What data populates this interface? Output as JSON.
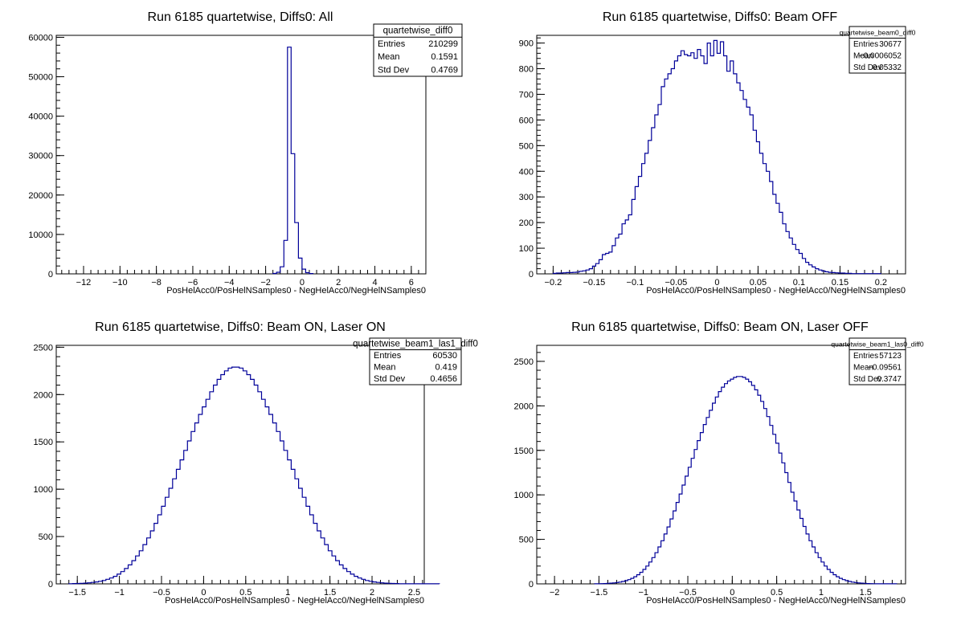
{
  "colors": {
    "line": "#000099",
    "axis": "#000000",
    "background": "#ffffff"
  },
  "chart_data": [
    {
      "type": "histogram",
      "title": "Run 6185 quartetwise, Diffs0: All",
      "xlabel": "PosHelAcc0/PosHelNSamples0 - NegHelAcc0/NegHelNSamples0",
      "ylabel": "",
      "xlim": [
        -13.5,
        6.8
      ],
      "ylim": [
        0,
        60500
      ],
      "xticks": [
        -12,
        -10,
        -8,
        -6,
        -4,
        -2,
        0,
        2,
        4,
        6
      ],
      "xtick_labels": [
        "−12",
        "−10",
        "−8",
        "−6",
        "−4",
        "−2",
        "0",
        "2",
        "4",
        "6"
      ],
      "yticks": [
        0,
        10000,
        20000,
        30000,
        40000,
        50000,
        60000
      ],
      "ytick_labels": [
        "0",
        "10000",
        "20000",
        "30000",
        "40000",
        "50000",
        "60000"
      ],
      "stats": {
        "name": "quartetwise_diff0",
        "rows": [
          {
            "label": "Entries",
            "value": "210299"
          },
          {
            "label": "Mean",
            "value": "0.1591"
          },
          {
            "label": "Std Dev",
            "value": "0.4769"
          }
        ]
      },
      "bins": {
        "x0": -1.6,
        "width": 0.2,
        "counts": [
          100,
          400,
          1800,
          8500,
          57500,
          30500,
          13000,
          4000,
          1200,
          300,
          80
        ]
      }
    },
    {
      "type": "histogram",
      "title": "Run 6185 quartetwise, Diffs0: Beam OFF",
      "xlabel": "PosHelAcc0/PosHelNSamples0 - NegHelAcc0/NegHelNSamples0",
      "ylabel": "",
      "xlim": [
        -0.22,
        0.23
      ],
      "ylim": [
        0,
        930
      ],
      "xticks": [
        -0.2,
        -0.15,
        -0.1,
        -0.05,
        0,
        0.05,
        0.1,
        0.15,
        0.2
      ],
      "xtick_labels": [
        "−0.2",
        "−0.15",
        "−0.1",
        "−0.05",
        "0",
        "0.05",
        "0.1",
        "0.15",
        "0.2"
      ],
      "yticks": [
        0,
        100,
        200,
        300,
        400,
        500,
        600,
        700,
        800,
        900
      ],
      "ytick_labels": [
        "0",
        "100",
        "200",
        "300",
        "400",
        "500",
        "600",
        "700",
        "800",
        "900"
      ],
      "stats": {
        "name": "quartetwise_beam0_diff0",
        "rows": [
          {
            "label": "Entries",
            "value": "30677"
          },
          {
            "label": "Mean",
            "value": "−0.0006052"
          },
          {
            "label": "Std Dev",
            "value": "0.05332"
          }
        ]
      },
      "bins": {
        "x0": -0.2,
        "width": 0.004,
        "counts": [
          2,
          3,
          3,
          4,
          5,
          5,
          6,
          7,
          10,
          12,
          15,
          20,
          30,
          40,
          55,
          75,
          80,
          85,
          110,
          140,
          155,
          195,
          210,
          230,
          290,
          340,
          380,
          430,
          470,
          520,
          570,
          620,
          660,
          730,
          760,
          780,
          800,
          830,
          850,
          870,
          855,
          850,
          862,
          840,
          875,
          850,
          820,
          900,
          850,
          910,
          860,
          905,
          850,
          790,
          830,
          780,
          745,
          715,
          680,
          650,
          620,
          560,
          515,
          470,
          430,
          400,
          360,
          310,
          275,
          240,
          195,
          165,
          140,
          115,
          95,
          80,
          60,
          45,
          35,
          27,
          20,
          15,
          11,
          8,
          6,
          5,
          4,
          3,
          3,
          2,
          2,
          1,
          1,
          1,
          1,
          1,
          1,
          1,
          1,
          1
        ]
      }
    },
    {
      "type": "histogram",
      "title": "Run 6185 quartetwise, Diffs0: Beam ON, Laser ON",
      "xlabel": "PosHelAcc0/PosHelNSamples0 - NegHelAcc0/NegHelNSamples0",
      "ylabel": "",
      "xlim": [
        -1.75,
        2.62
      ],
      "ylim": [
        0,
        2520
      ],
      "xticks": [
        -1.5,
        -1,
        -0.5,
        0,
        0.5,
        1,
        1.5,
        2,
        2.5
      ],
      "xtick_labels": [
        "−1.5",
        "−1",
        "−0.5",
        "0",
        "0.5",
        "1",
        "1.5",
        "2",
        "2.5"
      ],
      "yticks": [
        0,
        500,
        1000,
        1500,
        2000,
        2500
      ],
      "ytick_labels": [
        "0",
        "500",
        "1000",
        "1500",
        "2000",
        "2500"
      ],
      "stats": {
        "name": "quartetwise_beam1_las1_diff0",
        "rows": [
          {
            "label": "Entries",
            "value": "60530"
          },
          {
            "label": "Mean",
            "value": "0.419"
          },
          {
            "label": "Std Dev",
            "value": "0.4656"
          }
        ]
      },
      "bins": {
        "x0": -1.6,
        "width": 0.044,
        "counts": [
          2,
          3,
          4,
          6,
          8,
          11,
          15,
          20,
          27,
          36,
          48,
          62,
          80,
          103,
          130,
          162,
          200,
          245,
          295,
          350,
          415,
          485,
          560,
          640,
          730,
          820,
          915,
          1010,
          1110,
          1210,
          1310,
          1410,
          1510,
          1610,
          1700,
          1790,
          1870,
          1950,
          2030,
          2100,
          2160,
          2210,
          2250,
          2280,
          2290,
          2290,
          2280,
          2250,
          2210,
          2160,
          2100,
          2030,
          1950,
          1870,
          1790,
          1700,
          1610,
          1510,
          1410,
          1310,
          1210,
          1110,
          1010,
          915,
          820,
          730,
          640,
          560,
          485,
          415,
          350,
          295,
          245,
          200,
          162,
          130,
          103,
          80,
          62,
          48,
          36,
          27,
          20,
          15,
          11,
          8,
          6,
          4,
          3,
          2,
          1,
          1,
          1,
          1,
          1,
          1,
          1,
          1,
          1,
          1
        ]
      }
    },
    {
      "type": "histogram",
      "title": "Run 6185 quartetwise, Diffs0: Beam ON, Laser OFF",
      "xlabel": "PosHelAcc0/PosHelNSamples0 - NegHelAcc0/NegHelNSamples0",
      "ylabel": "",
      "xlim": [
        -2.2,
        1.95
      ],
      "ylim": [
        0,
        2680
      ],
      "xticks": [
        -2,
        -1.5,
        -1,
        -0.5,
        0,
        0.5,
        1,
        1.5
      ],
      "xtick_labels": [
        "−2",
        "−1.5",
        "−1",
        "−0.5",
        "0",
        "0.5",
        "1",
        "1.5"
      ],
      "yticks": [
        0,
        500,
        1000,
        1500,
        2000,
        2500
      ],
      "ytick_labels": [
        "0",
        "500",
        "1000",
        "1500",
        "2000",
        "2500"
      ],
      "stats": {
        "name": "quartetwise_beam1_las0_diff0",
        "rows": [
          {
            "label": "Entries",
            "value": "57123"
          },
          {
            "label": "Mean",
            "value": "−0.09561"
          },
          {
            "label": "Std Dev",
            "value": "0.3747"
          }
        ]
      },
      "bins": {
        "x0": -1.55,
        "width": 0.034,
        "counts": [
          1,
          2,
          3,
          4,
          6,
          8,
          11,
          15,
          20,
          27,
          36,
          48,
          62,
          80,
          103,
          130,
          162,
          200,
          245,
          295,
          350,
          415,
          485,
          560,
          640,
          730,
          820,
          915,
          1010,
          1110,
          1210,
          1310,
          1410,
          1510,
          1610,
          1700,
          1790,
          1870,
          1950,
          2030,
          2100,
          2160,
          2210,
          2250,
          2280,
          2300,
          2320,
          2330,
          2330,
          2320,
          2300,
          2270,
          2230,
          2180,
          2120,
          2050,
          1970,
          1880,
          1780,
          1680,
          1580,
          1470,
          1360,
          1250,
          1140,
          1030,
          930,
          830,
          735,
          645,
          560,
          485,
          415,
          350,
          295,
          245,
          200,
          162,
          130,
          103,
          80,
          62,
          48,
          36,
          27,
          20,
          15,
          11,
          8,
          6,
          4,
          3,
          2,
          1,
          1,
          1,
          1,
          1,
          1,
          1
        ]
      }
    }
  ]
}
